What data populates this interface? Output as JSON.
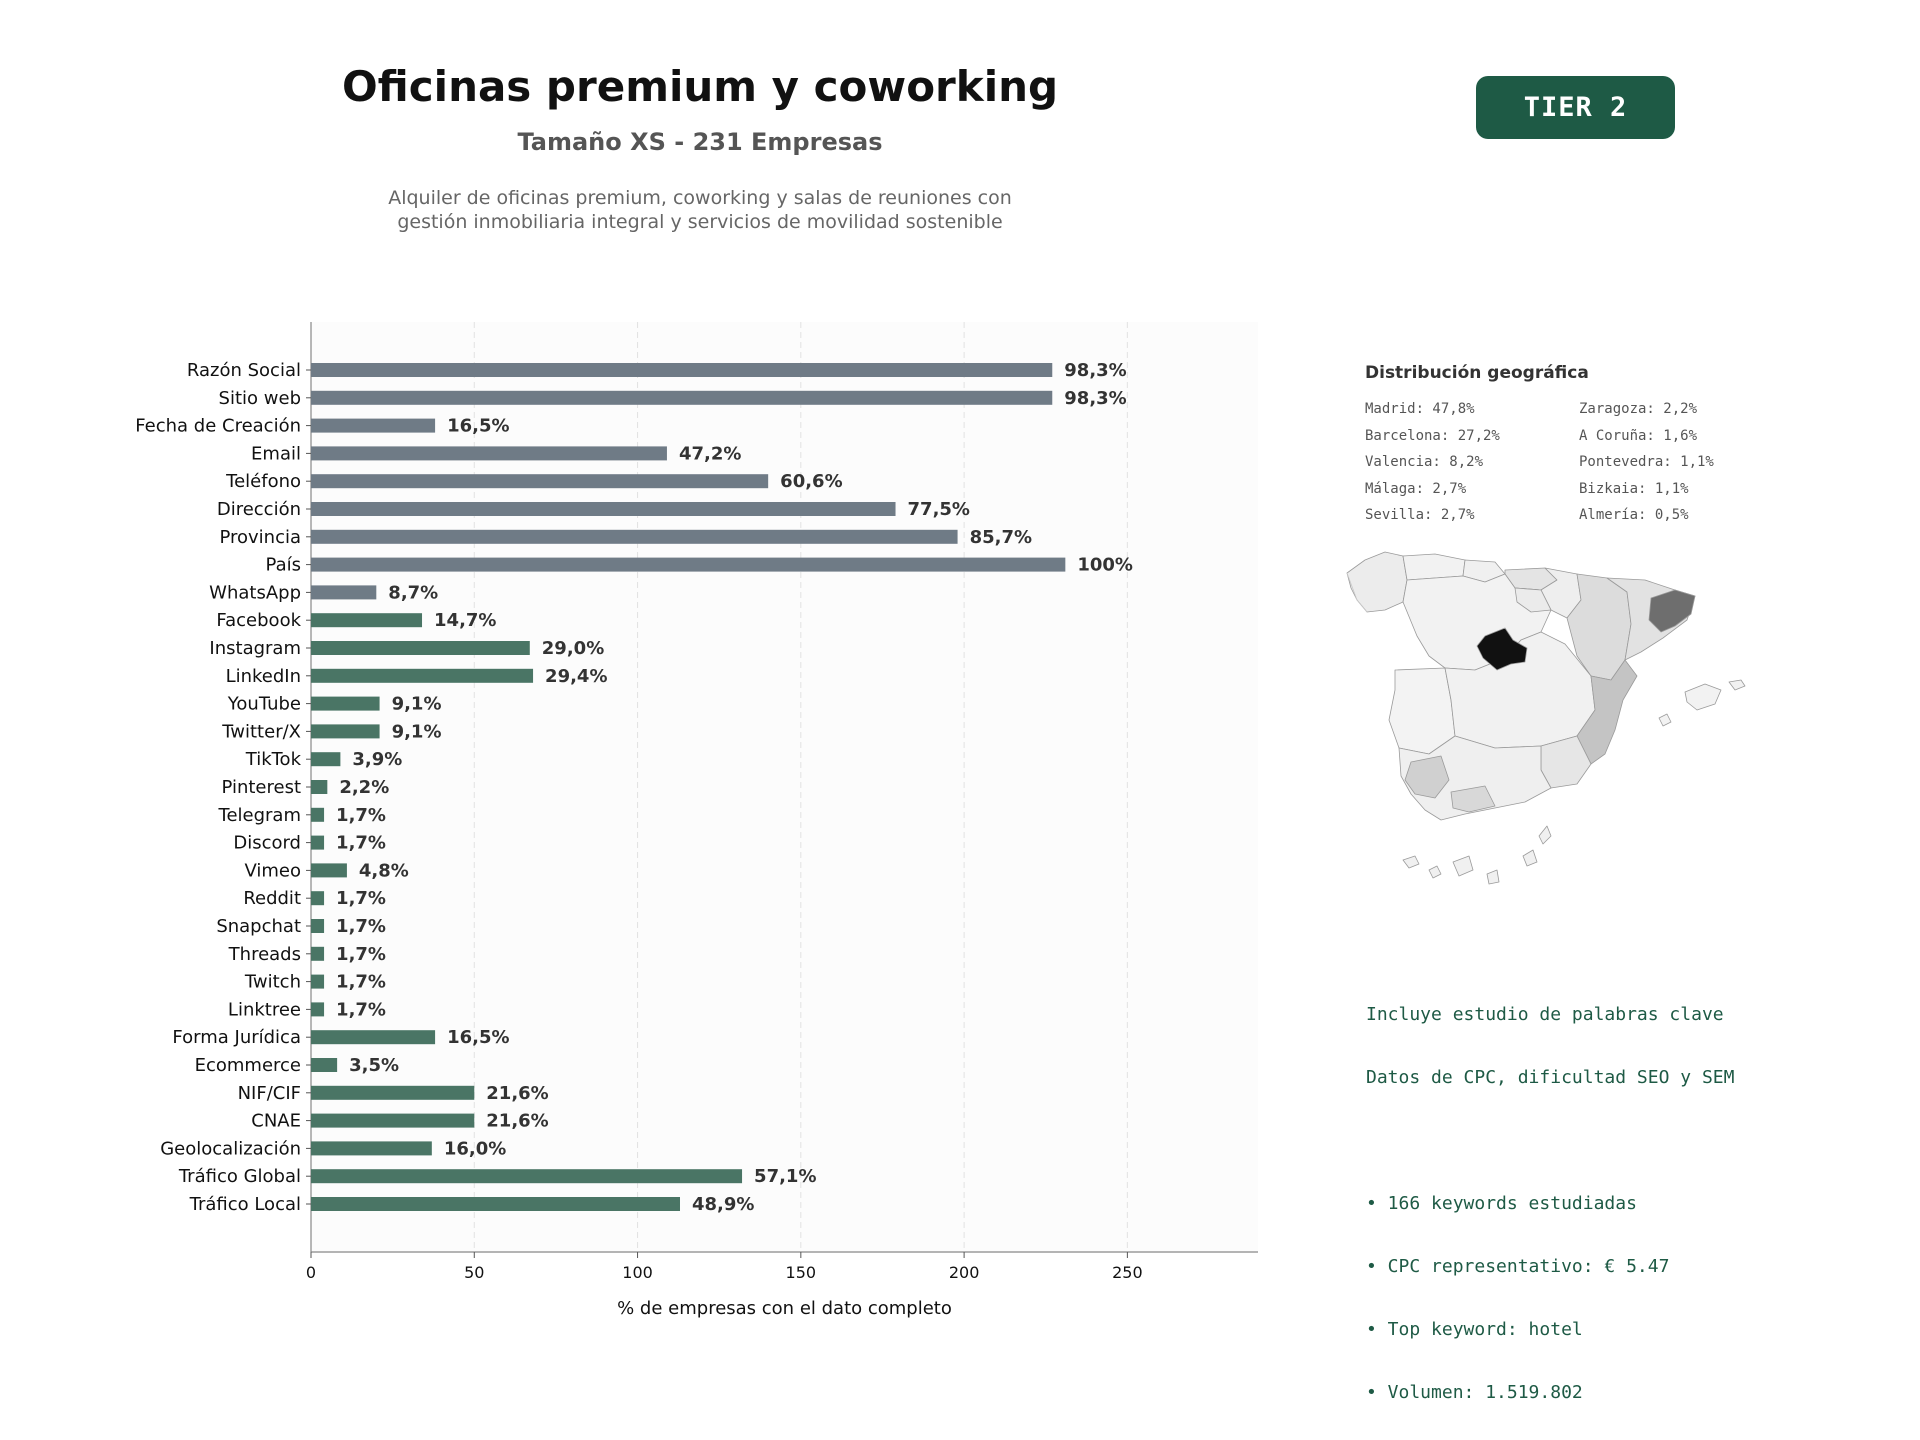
{
  "header": {
    "title": "Oficinas premium y coworking",
    "subtitle": "Tamaño XS - 231 Empresas",
    "description_lines": [
      "Alquiler de oficinas premium, coworking y salas de reuniones con",
      "gestión inmobiliaria integral y servicios de movilidad sostenible"
    ],
    "tier_label": "TIER 2"
  },
  "colors": {
    "accent": "#1e5a45",
    "bar_gray": "#6f7b86",
    "bar_green": "#4a7565",
    "seo_text": "#1e5a45"
  },
  "chart_data": {
    "type": "bar",
    "orientation": "horizontal",
    "xlabel": "% de empresas con el dato completo",
    "ylabel": "",
    "xlim": [
      0,
      290
    ],
    "xticks": [
      0,
      50,
      100,
      150,
      200,
      250
    ],
    "grid": "vertical dashed",
    "categories": [
      "Razón Social",
      "Sitio web",
      "Fecha de Creación",
      "Email",
      "Teléfono",
      "Dirección",
      "Provincia",
      "País",
      "WhatsApp",
      "Facebook",
      "Instagram",
      "LinkedIn",
      "YouTube",
      "Twitter/X",
      "TikTok",
      "Pinterest",
      "Telegram",
      "Discord",
      "Vimeo",
      "Reddit",
      "Snapchat",
      "Threads",
      "Twitch",
      "Linktree",
      "Forma Jurídica",
      "Ecommerce",
      "NIF/CIF",
      "CNAE",
      "Geolocalización",
      "Tráfico Global",
      "Tráfico Local"
    ],
    "values": [
      227,
      227,
      38,
      109,
      140,
      179,
      198,
      231,
      20,
      34,
      67,
      68,
      21,
      21,
      9,
      5,
      4,
      4,
      11,
      4,
      4,
      4,
      4,
      4,
      38,
      8,
      50,
      50,
      37,
      132,
      113
    ],
    "labels": [
      "98,3%",
      "98,3%",
      "16,5%",
      "47,2%",
      "60,6%",
      "77,5%",
      "85,7%",
      "100%",
      "8,7%",
      "14,7%",
      "29,0%",
      "29,4%",
      "9,1%",
      "9,1%",
      "3,9%",
      "2,2%",
      "1,7%",
      "1,7%",
      "4,8%",
      "1,7%",
      "1,7%",
      "1,7%",
      "1,7%",
      "1,7%",
      "16,5%",
      "3,5%",
      "21,6%",
      "21,6%",
      "16,0%",
      "57,1%",
      "48,9%"
    ],
    "bar_colors": [
      "gray",
      "gray",
      "gray",
      "gray",
      "gray",
      "gray",
      "gray",
      "gray",
      "gray",
      "green",
      "green",
      "green",
      "green",
      "green",
      "green",
      "green",
      "green",
      "green",
      "green",
      "green",
      "green",
      "green",
      "green",
      "green",
      "green",
      "green",
      "green",
      "green",
      "green",
      "green",
      "green"
    ]
  },
  "geo": {
    "title": "Distribución geográfica",
    "items": [
      "Madrid: 47,8%",
      "Zaragoza: 2,2%",
      "Barcelona: 27,2%",
      "A Coruña: 1,6%",
      "Valencia: 8,2%",
      "Pontevedra: 1,1%",
      "Málaga: 2,7%",
      "Bizkaia: 1,1%",
      "Sevilla: 2,7%",
      "Almería: 0,5%"
    ]
  },
  "seo": {
    "lines": [
      "Incluye estudio de palabras clave",
      "Datos de CPC, dificultad SEO y SEM"
    ],
    "bullets": [
      "• 166 keywords estudiadas",
      "• CPC representativo: € 5.47",
      "• Top keyword: hotel",
      "• Volumen: 1.519.802"
    ]
  }
}
